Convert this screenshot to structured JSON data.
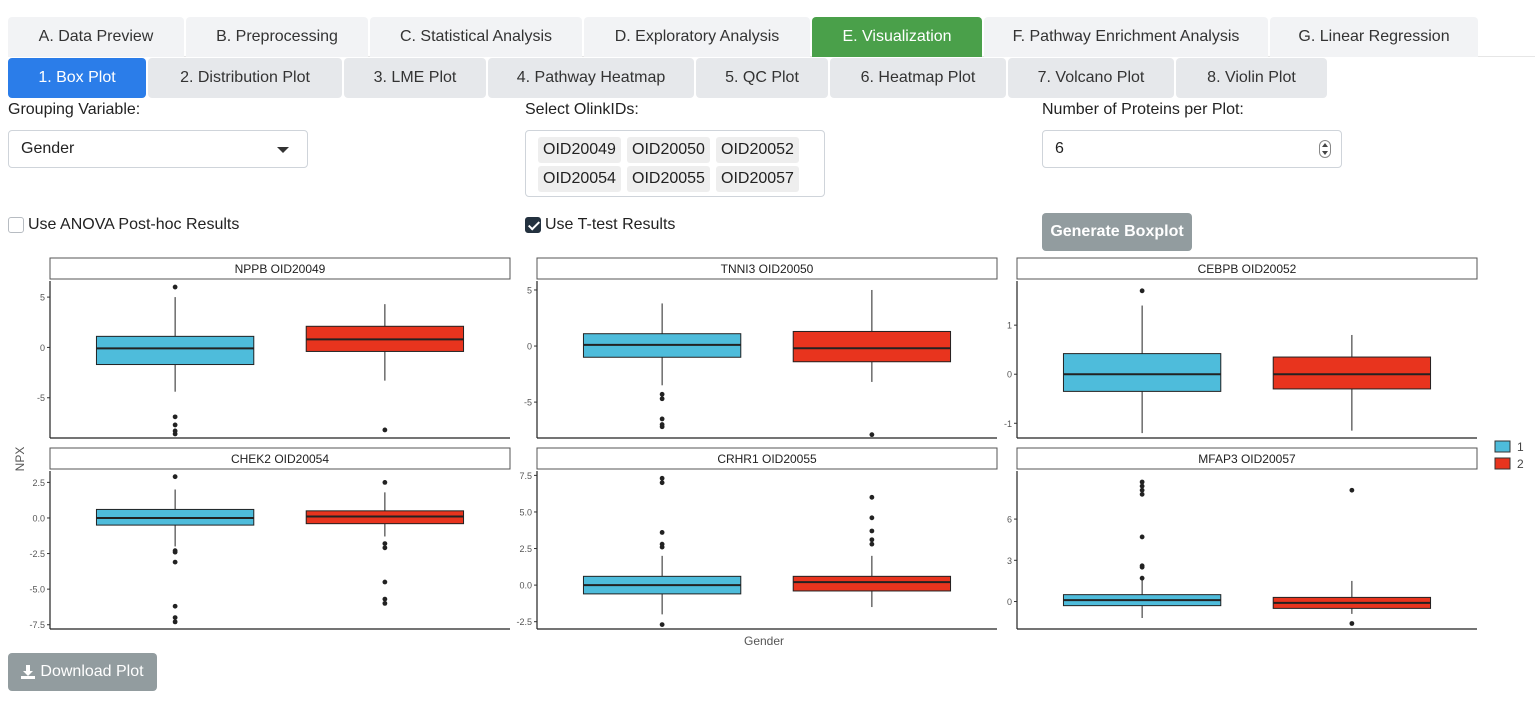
{
  "tabs": [
    {
      "label": "A. Data Preview",
      "active": false
    },
    {
      "label": "B. Preprocessing",
      "active": false
    },
    {
      "label": "C. Statistical Analysis",
      "active": false
    },
    {
      "label": "D. Exploratory Analysis",
      "active": false
    },
    {
      "label": "E. Visualization",
      "active": true
    },
    {
      "label": "F. Pathway Enrichment Analysis",
      "active": false
    },
    {
      "label": "G. Linear Regression",
      "active": false
    }
  ],
  "subtabs": [
    {
      "label": "1. Box Plot",
      "active": true
    },
    {
      "label": "2. Distribution Plot",
      "active": false
    },
    {
      "label": "3. LME Plot",
      "active": false
    },
    {
      "label": "4. Pathway Heatmap",
      "active": false
    },
    {
      "label": "5. QC Plot",
      "active": false
    },
    {
      "label": "6. Heatmap Plot",
      "active": false
    },
    {
      "label": "7. Volcano Plot",
      "active": false
    },
    {
      "label": "8. Violin Plot",
      "active": false
    }
  ],
  "controls": {
    "grouping_label": "Grouping Variable:",
    "grouping_value": "Gender",
    "olink_label": "Select OlinkIDs:",
    "olink_ids": [
      "OID20049",
      "OID20050",
      "OID20052",
      "OID20054",
      "OID20055",
      "OID20057"
    ],
    "nproteins_label": "Number of Proteins per Plot:",
    "nproteins_value": "6",
    "anova_label": "Use ANOVA Post-hoc Results",
    "anova_checked": false,
    "ttest_label": "Use T-test Results",
    "ttest_checked": true,
    "generate_button": "Generate Boxplot",
    "download_button": "Download Plot"
  },
  "colors": {
    "group1": "#4ebcdb",
    "group2": "#e8341e",
    "active_tab": "#4aa04a",
    "active_subtab": "#2b7de9"
  },
  "chart_data": {
    "type": "box",
    "xlabel": "Gender",
    "ylabel": "NPX",
    "legend": {
      "placement": "right",
      "entries": [
        "1",
        "2"
      ]
    },
    "panels": [
      {
        "title": "NPPB OID20049",
        "ylim": [
          -9,
          6.6
        ],
        "ticks": [
          5,
          0,
          -5
        ],
        "tick_labels": [
          "5",
          "0",
          "-5"
        ],
        "groups": [
          {
            "name": "1",
            "whisker_low": -4.4,
            "q1": -1.7,
            "median": -0.1,
            "q3": 1.1,
            "whisker_high": 5.0,
            "outliers": [
              6.0,
              -6.9,
              -7.7,
              -8.3,
              -8.6
            ]
          },
          {
            "name": "2",
            "whisker_low": -3.3,
            "q1": -0.4,
            "median": 0.8,
            "q3": 2.1,
            "whisker_high": 4.3,
            "outliers": [
              -8.2
            ]
          }
        ]
      },
      {
        "title": "TNNI3 OID20050",
        "ylim": [
          -8.2,
          5.8
        ],
        "ticks": [
          5,
          0,
          -5
        ],
        "tick_labels": [
          "5",
          "0",
          "-5"
        ],
        "groups": [
          {
            "name": "1",
            "whisker_low": -3.5,
            "q1": -1.0,
            "median": 0.1,
            "q3": 1.1,
            "whisker_high": 3.8,
            "outliers": [
              -4.3,
              -4.7,
              -6.5,
              -7.0,
              -7.2
            ]
          },
          {
            "name": "2",
            "whisker_low": -3.2,
            "q1": -1.4,
            "median": -0.2,
            "q3": 1.3,
            "whisker_high": 5.0,
            "outliers": [
              -7.9
            ]
          }
        ]
      },
      {
        "title": "CEBPB OID20052",
        "ylim": [
          -1.3,
          1.9
        ],
        "ticks": [
          1,
          0,
          -1
        ],
        "tick_labels": [
          "1",
          "0",
          "-1"
        ],
        "groups": [
          {
            "name": "1",
            "whisker_low": -1.2,
            "q1": -0.35,
            "median": 0.0,
            "q3": 0.42,
            "whisker_high": 1.4,
            "outliers": [
              1.7
            ]
          },
          {
            "name": "2",
            "whisker_low": -1.15,
            "q1": -0.3,
            "median": 0.0,
            "q3": 0.35,
            "whisker_high": 0.8,
            "outliers": []
          }
        ]
      },
      {
        "title": "CHEK2 OID20054",
        "ylim": [
          -7.8,
          3.3
        ],
        "ticks": [
          2.5,
          0,
          -2.5,
          -5,
          -7.5
        ],
        "tick_labels": [
          "2.5",
          "0.0",
          "-2.5",
          "-5.0",
          "-7.5"
        ],
        "groups": [
          {
            "name": "1",
            "whisker_low": -2.0,
            "q1": -0.5,
            "median": 0.0,
            "q3": 0.6,
            "whisker_high": 2.0,
            "outliers": [
              2.9,
              -2.3,
              -2.4,
              -3.1,
              -6.2,
              -7.0,
              -7.3
            ]
          },
          {
            "name": "2",
            "whisker_low": -1.3,
            "q1": -0.4,
            "median": 0.1,
            "q3": 0.5,
            "whisker_high": 1.8,
            "outliers": [
              2.5,
              -1.8,
              -2.1,
              -4.5,
              -5.7,
              -6.0
            ]
          }
        ]
      },
      {
        "title": "CRHR1 OID20055",
        "ylim": [
          -3.0,
          7.8
        ],
        "ticks": [
          7.5,
          5,
          2.5,
          0,
          -2.5
        ],
        "tick_labels": [
          "7.5",
          "5.0",
          "2.5",
          "0.0",
          "-2.5"
        ],
        "groups": [
          {
            "name": "1",
            "whisker_low": -2.0,
            "q1": -0.6,
            "median": 0.0,
            "q3": 0.6,
            "whisker_high": 2.0,
            "outliers": [
              7.3,
              7.0,
              3.6,
              2.8,
              2.6,
              -2.7
            ]
          },
          {
            "name": "2",
            "whisker_low": -1.5,
            "q1": -0.4,
            "median": 0.2,
            "q3": 0.6,
            "whisker_high": 2.0,
            "outliers": [
              6.0,
              4.6,
              3.7,
              3.1,
              2.8
            ]
          }
        ]
      },
      {
        "title": "MFAP3 OID20057",
        "ylim": [
          -2.0,
          9.5
        ],
        "ticks": [
          6,
          3,
          0
        ],
        "tick_labels": [
          "6",
          "3",
          "0"
        ],
        "groups": [
          {
            "name": "1",
            "whisker_low": -1.2,
            "q1": -0.3,
            "median": 0.1,
            "q3": 0.5,
            "whisker_high": 1.6,
            "outliers": [
              8.7,
              8.4,
              8.1,
              7.8,
              4.7,
              2.6,
              2.5,
              1.7
            ]
          },
          {
            "name": "2",
            "whisker_low": -0.9,
            "q1": -0.5,
            "median": -0.1,
            "q3": 0.3,
            "whisker_high": 1.5,
            "outliers": [
              8.1,
              -1.6
            ]
          }
        ]
      }
    ]
  }
}
